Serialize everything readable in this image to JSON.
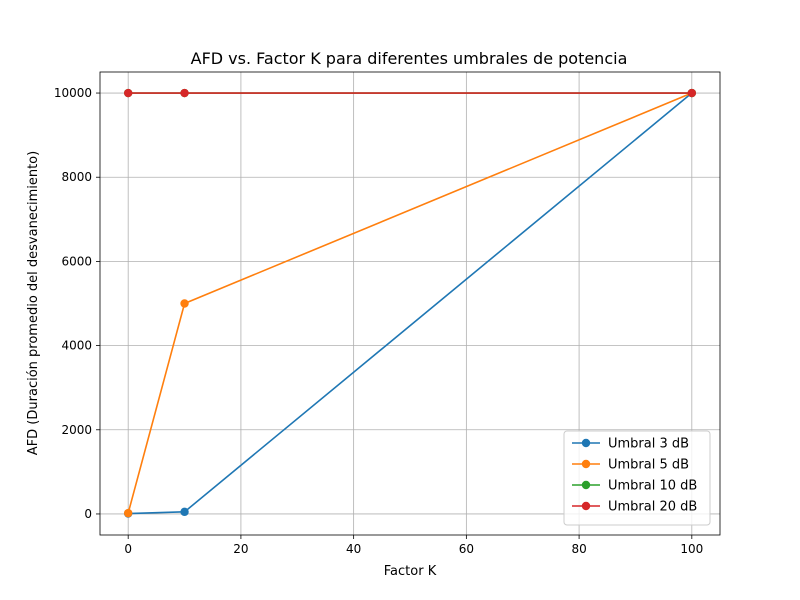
{
  "chart_data": {
    "type": "line",
    "title": "AFD vs. Factor K para diferentes umbrales de potencia",
    "xlabel": "Factor K",
    "ylabel": "AFD (Duración promedio del desvanecimiento)",
    "xlim": [
      -5,
      105
    ],
    "ylim": [
      -500,
      10500
    ],
    "xticks": [
      0,
      20,
      40,
      60,
      80,
      100
    ],
    "yticks": [
      0,
      2000,
      4000,
      6000,
      8000,
      10000
    ],
    "grid": true,
    "legend_position": "lower-right",
    "x": [
      0,
      10,
      100
    ],
    "series": [
      {
        "name": "Umbral 3 dB",
        "color": "#1f77b4",
        "values": [
          10,
          50,
          10000
        ]
      },
      {
        "name": "Umbral 5 dB",
        "color": "#ff7f0e",
        "values": [
          20,
          5000,
          10000
        ]
      },
      {
        "name": "Umbral 10 dB",
        "color": "#2ca02c",
        "values": [
          10000,
          10000,
          10000
        ]
      },
      {
        "name": "Umbral 20 dB",
        "color": "#d62728",
        "values": [
          10000,
          10000,
          10000
        ]
      }
    ]
  }
}
